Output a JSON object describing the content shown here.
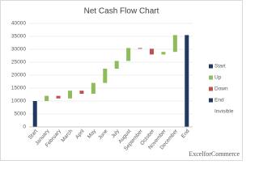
{
  "chart_data": {
    "type": "waterfall",
    "title": "Net Cash Flow Chart",
    "categories": [
      "Start",
      "January",
      "February",
      "March",
      "April",
      "May",
      "June",
      "July",
      "August",
      "September",
      "October",
      "November",
      "December",
      "End"
    ],
    "series": [
      {
        "name": "Invisible",
        "values": [
          null,
          10000,
          11000,
          11000,
          12800,
          12800,
          17000,
          22500,
          25500,
          30200,
          28000,
          28000,
          29000,
          null
        ]
      },
      {
        "name": "Start",
        "color": "#1f3864",
        "values": [
          10000,
          null,
          null,
          null,
          null,
          null,
          null,
          null,
          null,
          null,
          null,
          null,
          null,
          null
        ]
      },
      {
        "name": "Up",
        "color": "#8fbc5a",
        "values": [
          null,
          2000,
          null,
          3000,
          null,
          4200,
          5500,
          3000,
          5000,
          null,
          null,
          1000,
          6500,
          null
        ]
      },
      {
        "name": "Down",
        "color": "#c0504d",
        "values": [
          null,
          null,
          1000,
          null,
          1200,
          null,
          null,
          null,
          null,
          300,
          2200,
          null,
          null,
          null
        ]
      },
      {
        "name": "End",
        "color": "#1f3864",
        "values": [
          null,
          null,
          null,
          null,
          null,
          null,
          null,
          null,
          null,
          null,
          null,
          null,
          null,
          35500
        ]
      }
    ],
    "legend_order": [
      1,
      2,
      3,
      4,
      0
    ],
    "ylim": [
      0,
      40000
    ],
    "yticks": [
      0,
      5000,
      10000,
      15000,
      20000,
      25000,
      30000,
      35000,
      40000
    ],
    "grid": true,
    "watermark": "ExcelforCommerce"
  }
}
